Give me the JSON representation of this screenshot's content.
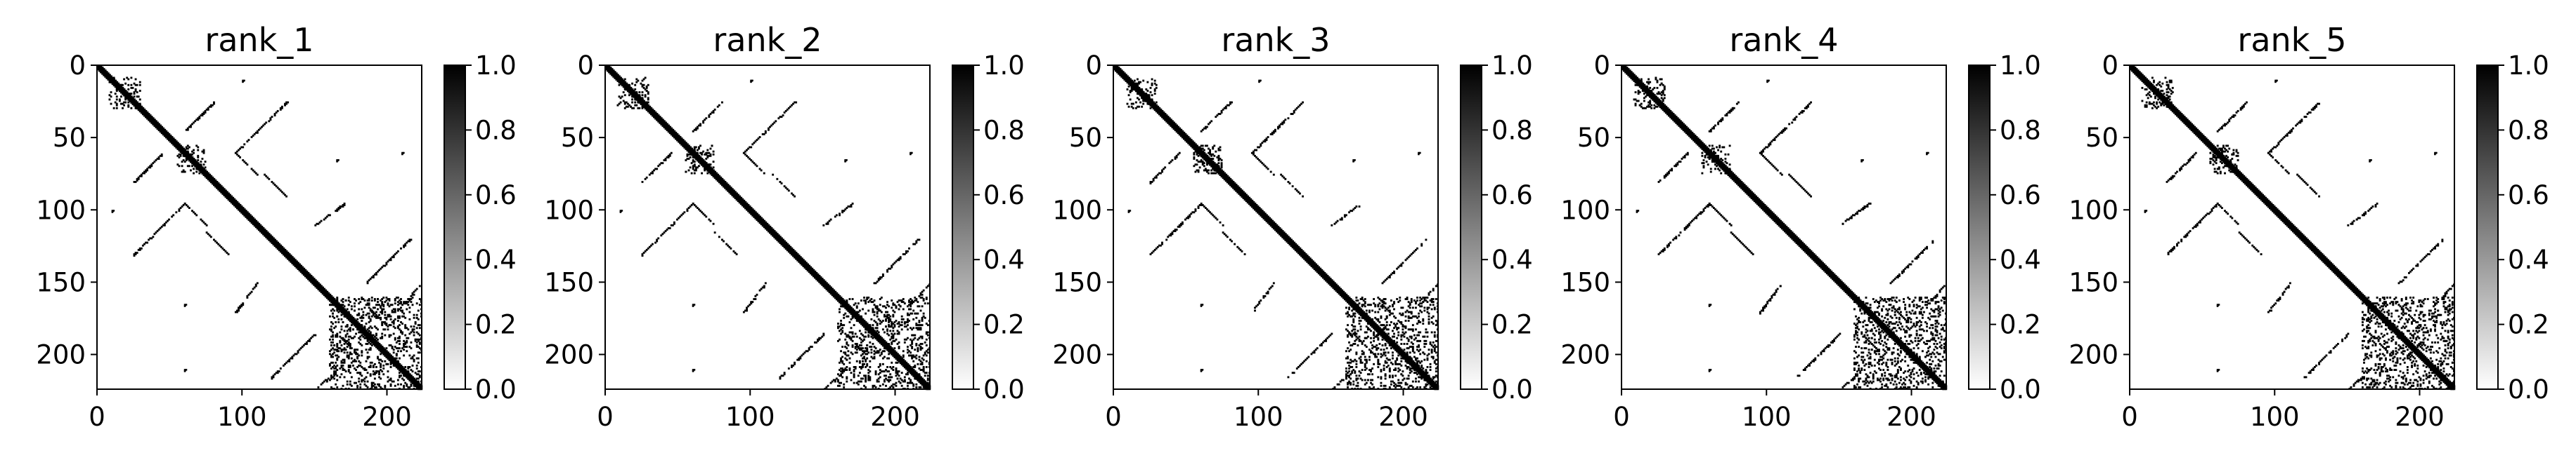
{
  "figure": {
    "background": "#ffffff"
  },
  "colormap": {
    "low": "#ffffff",
    "high": "#000000"
  },
  "chart_data": [
    {
      "type": "heatmap",
      "title": "rank_1",
      "xlabel": "",
      "ylabel": "",
      "matrix_size": 224,
      "xlim": [
        0,
        224
      ],
      "ylim": [
        224,
        0
      ],
      "x_ticks": [
        "0",
        "100",
        "200"
      ],
      "y_ticks": [
        "0",
        "50",
        "100",
        "150",
        "200"
      ],
      "colorbar": {
        "range": [
          0.0,
          1.0
        ],
        "ticks": [
          "0.0",
          "0.2",
          "0.4",
          "0.6",
          "0.8",
          "1.0"
        ]
      },
      "contacts": {
        "diagonal": [
          [
            0,
            223
          ]
        ],
        "blocks": [
          [
            8,
            30,
            10,
            30
          ],
          [
            55,
            75,
            55,
            75
          ],
          [
            160,
            224,
            160,
            224
          ]
        ],
        "antiparallel_strands": [
          [
            60,
            45,
            80,
            25
          ],
          [
            95,
            60,
            130,
            25
          ],
          [
            150,
            110,
            170,
            95
          ],
          [
            210,
            165,
            224,
            150
          ],
          [
            185,
            150,
            215,
            120
          ]
        ],
        "parallel_strands": [
          [
            95,
            60,
            110,
            75
          ],
          [
            115,
            75,
            130,
            90
          ],
          [
            185,
            165,
            200,
            180
          ]
        ],
        "isolated": [
          [
            65,
            165
          ],
          [
            165,
            60
          ],
          [
            210,
            60
          ],
          [
            60,
            210
          ],
          [
            100,
            10
          ],
          [
            10,
            100
          ]
        ]
      }
    },
    {
      "type": "heatmap",
      "title": "rank_2",
      "xlabel": "",
      "ylabel": "",
      "matrix_size": 224,
      "xlim": [
        0,
        224
      ],
      "ylim": [
        224,
        0
      ],
      "x_ticks": [
        "0",
        "100",
        "200"
      ],
      "y_ticks": [
        "0",
        "50",
        "100",
        "150",
        "200"
      ],
      "colorbar": {
        "range": [
          0.0,
          1.0
        ],
        "ticks": [
          "0.0",
          "0.2",
          "0.4",
          "0.6",
          "0.8",
          "1.0"
        ]
      },
      "contacts": {
        "diagonal": [
          [
            0,
            223
          ]
        ],
        "blocks": [
          [
            8,
            30,
            10,
            30
          ],
          [
            55,
            75,
            55,
            75
          ],
          [
            160,
            224,
            160,
            224
          ]
        ],
        "antiparallel_strands": [
          [
            60,
            45,
            80,
            25
          ],
          [
            95,
            60,
            130,
            25
          ],
          [
            150,
            110,
            170,
            95
          ],
          [
            210,
            165,
            224,
            150
          ],
          [
            185,
            150,
            215,
            120
          ]
        ],
        "parallel_strands": [
          [
            95,
            60,
            110,
            75
          ],
          [
            115,
            75,
            130,
            90
          ],
          [
            185,
            165,
            200,
            180
          ]
        ],
        "isolated": [
          [
            65,
            165
          ],
          [
            165,
            60
          ],
          [
            210,
            60
          ],
          [
            60,
            210
          ],
          [
            100,
            10
          ],
          [
            10,
            100
          ]
        ]
      }
    },
    {
      "type": "heatmap",
      "title": "rank_3",
      "xlabel": "",
      "ylabel": "",
      "matrix_size": 224,
      "xlim": [
        0,
        224
      ],
      "ylim": [
        224,
        0
      ],
      "x_ticks": [
        "0",
        "100",
        "200"
      ],
      "y_ticks": [
        "0",
        "50",
        "100",
        "150",
        "200"
      ],
      "colorbar": {
        "range": [
          0.0,
          1.0
        ],
        "ticks": [
          "0.0",
          "0.2",
          "0.4",
          "0.6",
          "0.8",
          "1.0"
        ]
      },
      "contacts": {
        "diagonal": [
          [
            0,
            223
          ]
        ],
        "blocks": [
          [
            8,
            30,
            10,
            30
          ],
          [
            55,
            75,
            55,
            75
          ],
          [
            160,
            224,
            160,
            224
          ]
        ],
        "antiparallel_strands": [
          [
            60,
            45,
            80,
            25
          ],
          [
            95,
            60,
            130,
            25
          ],
          [
            150,
            110,
            170,
            95
          ],
          [
            210,
            165,
            224,
            150
          ],
          [
            185,
            150,
            215,
            120
          ]
        ],
        "parallel_strands": [
          [
            95,
            60,
            110,
            75
          ],
          [
            115,
            75,
            130,
            90
          ],
          [
            185,
            165,
            200,
            180
          ]
        ],
        "isolated": [
          [
            65,
            165
          ],
          [
            165,
            60
          ],
          [
            210,
            60
          ],
          [
            60,
            210
          ],
          [
            100,
            10
          ],
          [
            10,
            100
          ]
        ]
      }
    },
    {
      "type": "heatmap",
      "title": "rank_4",
      "xlabel": "",
      "ylabel": "",
      "matrix_size": 224,
      "xlim": [
        0,
        224
      ],
      "ylim": [
        224,
        0
      ],
      "x_ticks": [
        "0",
        "100",
        "200"
      ],
      "y_ticks": [
        "0",
        "50",
        "100",
        "150",
        "200"
      ],
      "colorbar": {
        "range": [
          0.0,
          1.0
        ],
        "ticks": [
          "0.0",
          "0.2",
          "0.4",
          "0.6",
          "0.8",
          "1.0"
        ]
      },
      "contacts": {
        "diagonal": [
          [
            0,
            223
          ]
        ],
        "blocks": [
          [
            8,
            30,
            10,
            30
          ],
          [
            55,
            75,
            55,
            75
          ],
          [
            160,
            224,
            160,
            224
          ]
        ],
        "antiparallel_strands": [
          [
            60,
            45,
            80,
            25
          ],
          [
            95,
            60,
            130,
            25
          ],
          [
            150,
            110,
            170,
            95
          ],
          [
            210,
            165,
            224,
            150
          ],
          [
            185,
            150,
            215,
            120
          ]
        ],
        "parallel_strands": [
          [
            95,
            60,
            110,
            75
          ],
          [
            115,
            75,
            130,
            90
          ],
          [
            185,
            165,
            200,
            180
          ]
        ],
        "isolated": [
          [
            65,
            165
          ],
          [
            165,
            60
          ],
          [
            210,
            60
          ],
          [
            60,
            210
          ],
          [
            100,
            10
          ],
          [
            10,
            100
          ]
        ]
      }
    },
    {
      "type": "heatmap",
      "title": "rank_5",
      "xlabel": "",
      "ylabel": "",
      "matrix_size": 224,
      "xlim": [
        0,
        224
      ],
      "ylim": [
        224,
        0
      ],
      "x_ticks": [
        "0",
        "100",
        "200"
      ],
      "y_ticks": [
        "0",
        "50",
        "100",
        "150",
        "200"
      ],
      "colorbar": {
        "range": [
          0.0,
          1.0
        ],
        "ticks": [
          "0.0",
          "0.2",
          "0.4",
          "0.6",
          "0.8",
          "1.0"
        ]
      },
      "contacts": {
        "diagonal": [
          [
            0,
            223
          ]
        ],
        "blocks": [
          [
            8,
            30,
            10,
            30
          ],
          [
            55,
            75,
            55,
            75
          ],
          [
            160,
            224,
            160,
            224
          ]
        ],
        "antiparallel_strands": [
          [
            60,
            45,
            80,
            25
          ],
          [
            95,
            60,
            130,
            25
          ],
          [
            150,
            110,
            170,
            95
          ],
          [
            210,
            165,
            224,
            150
          ],
          [
            185,
            150,
            215,
            120
          ]
        ],
        "parallel_strands": [
          [
            95,
            60,
            110,
            75
          ],
          [
            115,
            75,
            130,
            90
          ],
          [
            185,
            165,
            200,
            180
          ]
        ],
        "isolated": [
          [
            65,
            165
          ],
          [
            165,
            60
          ],
          [
            210,
            60
          ],
          [
            60,
            210
          ],
          [
            100,
            10
          ],
          [
            10,
            100
          ]
        ]
      }
    }
  ]
}
